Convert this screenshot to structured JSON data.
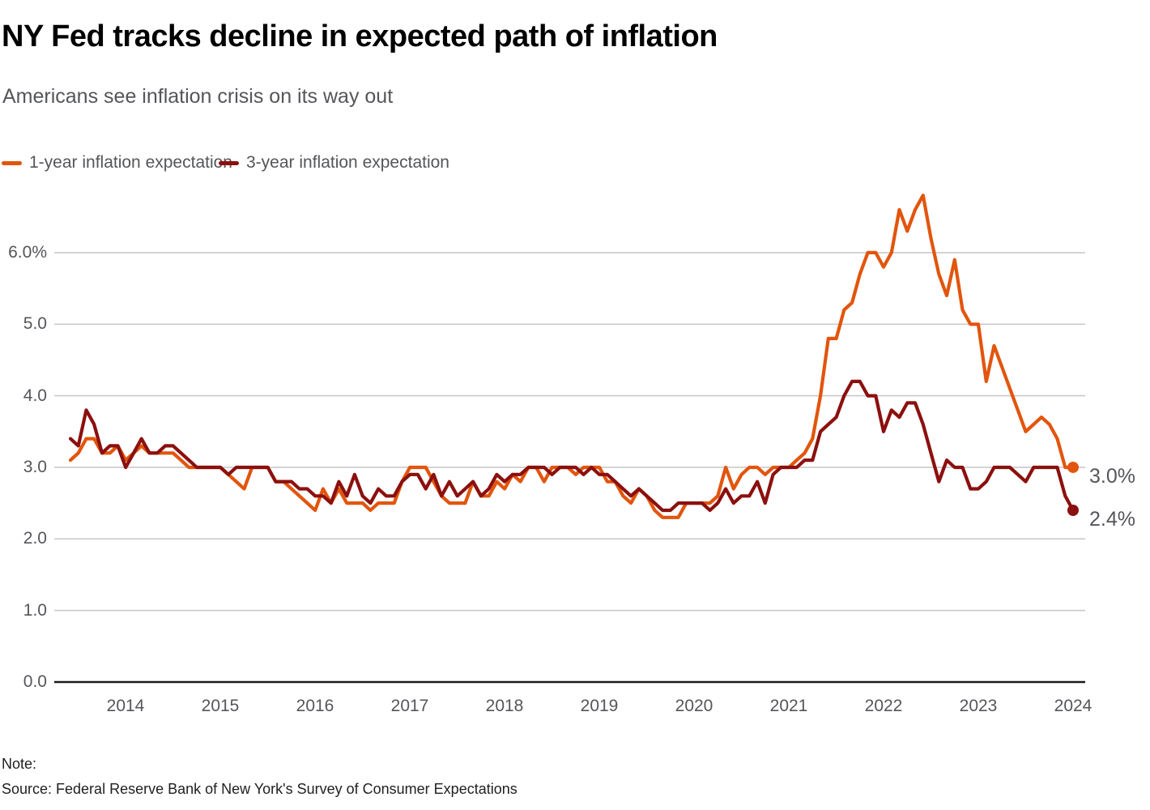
{
  "header": {
    "title": "NY Fed tracks decline in expected path of inflation",
    "subtitle": "Americans see inflation crisis on its way out"
  },
  "legend": [
    {
      "label": "1-year inflation expectation",
      "color": "#e2550d"
    },
    {
      "label": "3-year inflation expectation",
      "color": "#8b100e"
    }
  ],
  "notes": {
    "note_label": "Note:",
    "source": "Source: Federal Reserve Bank of New York's Survey of Consumer Expectations"
  },
  "colors": {
    "orange_series": "#e2550d",
    "dark_red_series": "#8b100e",
    "gridline": "#c9c9c9",
    "axis_line": "#1a1a1a",
    "text_gray": "#54565a",
    "title_black": "#000000"
  },
  "chart_data": {
    "type": "line",
    "title": "NY Fed tracks decline in expected path of inflation",
    "subtitle": "Americans see inflation crisis on its way out",
    "x_monthly_start": "2013-06",
    "x_monthly_end": "2024-01",
    "x_tick_labels": [
      "2014",
      "2015",
      "2016",
      "2017",
      "2018",
      "2019",
      "2020",
      "2021",
      "2022",
      "2023",
      "2024"
    ],
    "y_ticks": [
      {
        "label": "0.0",
        "value": 0
      },
      {
        "label": "1.0",
        "value": 1
      },
      {
        "label": "2.0",
        "value": 2
      },
      {
        "label": "3.0",
        "value": 3
      },
      {
        "label": "4.0",
        "value": 4
      },
      {
        "label": "5.0",
        "value": 5
      },
      {
        "label": "6.0%",
        "value": 6
      }
    ],
    "ylim": [
      0,
      7.0
    ],
    "grid": true,
    "legend_position": "top-left",
    "series": [
      {
        "name": "1-year inflation expectation",
        "color": "#e2550d",
        "end_label": "3.0%",
        "end_value": 3.0,
        "values": [
          3.1,
          3.2,
          3.4,
          3.4,
          3.2,
          3.2,
          3.3,
          3.1,
          3.2,
          3.3,
          3.2,
          3.2,
          3.2,
          3.2,
          3.1,
          3.0,
          3.0,
          3.0,
          3.0,
          3.0,
          2.9,
          2.8,
          2.7,
          3.0,
          3.0,
          3.0,
          2.8,
          2.8,
          2.7,
          2.6,
          2.5,
          2.4,
          2.7,
          2.5,
          2.7,
          2.5,
          2.5,
          2.5,
          2.4,
          2.5,
          2.5,
          2.5,
          2.8,
          3.0,
          3.0,
          3.0,
          2.8,
          2.6,
          2.5,
          2.5,
          2.5,
          2.8,
          2.6,
          2.6,
          2.8,
          2.7,
          2.9,
          2.8,
          3.0,
          3.0,
          2.8,
          3.0,
          3.0,
          3.0,
          2.9,
          3.0,
          3.0,
          3.0,
          2.8,
          2.8,
          2.6,
          2.5,
          2.7,
          2.6,
          2.4,
          2.3,
          2.3,
          2.3,
          2.5,
          2.5,
          2.5,
          2.5,
          2.6,
          3.0,
          2.7,
          2.9,
          3.0,
          3.0,
          2.9,
          3.0,
          3.0,
          3.0,
          3.1,
          3.2,
          3.4,
          4.0,
          4.8,
          4.8,
          5.2,
          5.3,
          5.7,
          6.0,
          6.0,
          5.8,
          6.0,
          6.6,
          6.3,
          6.6,
          6.8,
          6.2,
          5.7,
          5.4,
          5.9,
          5.2,
          5.0,
          5.0,
          4.2,
          4.7,
          4.4,
          4.1,
          3.8,
          3.5,
          3.6,
          3.7,
          3.6,
          3.4,
          3.0,
          3.0
        ]
      },
      {
        "name": "3-year inflation expectation",
        "color": "#8b100e",
        "end_label": "2.4%",
        "end_value": 2.4,
        "values": [
          3.4,
          3.3,
          3.8,
          3.6,
          3.2,
          3.3,
          3.3,
          3.0,
          3.2,
          3.4,
          3.2,
          3.2,
          3.3,
          3.3,
          3.2,
          3.1,
          3.0,
          3.0,
          3.0,
          3.0,
          2.9,
          3.0,
          3.0,
          3.0,
          3.0,
          3.0,
          2.8,
          2.8,
          2.8,
          2.7,
          2.7,
          2.6,
          2.6,
          2.5,
          2.8,
          2.6,
          2.9,
          2.6,
          2.5,
          2.7,
          2.6,
          2.6,
          2.8,
          2.9,
          2.9,
          2.7,
          2.9,
          2.6,
          2.8,
          2.6,
          2.7,
          2.8,
          2.6,
          2.7,
          2.9,
          2.8,
          2.9,
          2.9,
          3.0,
          3.0,
          3.0,
          2.9,
          3.0,
          3.0,
          3.0,
          2.9,
          3.0,
          2.9,
          2.9,
          2.8,
          2.7,
          2.6,
          2.7,
          2.6,
          2.5,
          2.4,
          2.4,
          2.5,
          2.5,
          2.5,
          2.5,
          2.4,
          2.5,
          2.7,
          2.5,
          2.6,
          2.6,
          2.8,
          2.5,
          2.9,
          3.0,
          3.0,
          3.0,
          3.1,
          3.1,
          3.5,
          3.6,
          3.7,
          4.0,
          4.2,
          4.2,
          4.0,
          4.0,
          3.5,
          3.8,
          3.7,
          3.9,
          3.9,
          3.6,
          3.2,
          2.8,
          3.1,
          3.0,
          3.0,
          2.7,
          2.7,
          2.8,
          3.0,
          3.0,
          3.0,
          2.9,
          2.8,
          3.0,
          3.0,
          3.0,
          3.0,
          2.6,
          2.4
        ]
      }
    ]
  }
}
